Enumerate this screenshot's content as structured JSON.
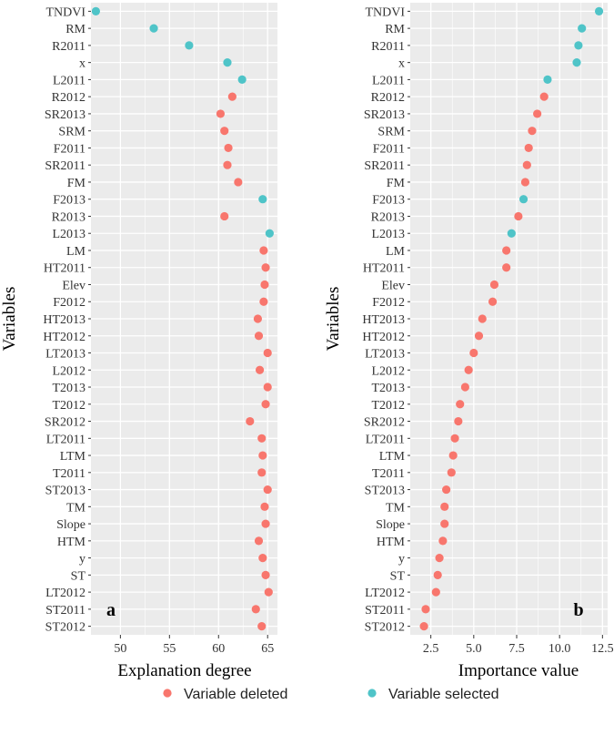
{
  "chart_data": [
    {
      "type": "scatter",
      "panel_label": "a",
      "xlabel": "Explanation degree",
      "ylabel": "Variables",
      "xlim": [
        47,
        66
      ],
      "xticks": [
        50,
        55,
        60,
        65
      ],
      "xtick_labels": [
        "50",
        "55",
        "60",
        "65"
      ],
      "grid": true,
      "points": [
        {
          "variable": "TNDVI",
          "value": 47.5,
          "status": "selected"
        },
        {
          "variable": "RM",
          "value": 53.4,
          "status": "selected"
        },
        {
          "variable": "R2011",
          "value": 57.0,
          "status": "selected"
        },
        {
          "variable": "x",
          "value": 60.9,
          "status": "selected"
        },
        {
          "variable": "L2011",
          "value": 62.4,
          "status": "selected"
        },
        {
          "variable": "R2012",
          "value": 61.4,
          "status": "deleted"
        },
        {
          "variable": "SR2013",
          "value": 60.2,
          "status": "deleted"
        },
        {
          "variable": "SRM",
          "value": 60.6,
          "status": "deleted"
        },
        {
          "variable": "F2011",
          "value": 61.0,
          "status": "deleted"
        },
        {
          "variable": "SR2011",
          "value": 60.9,
          "status": "deleted"
        },
        {
          "variable": "FM",
          "value": 62.0,
          "status": "deleted"
        },
        {
          "variable": "F2013",
          "value": 64.5,
          "status": "selected"
        },
        {
          "variable": "R2013",
          "value": 60.6,
          "status": "deleted"
        },
        {
          "variable": "L2013",
          "value": 65.2,
          "status": "selected"
        },
        {
          "variable": "LM",
          "value": 64.6,
          "status": "deleted"
        },
        {
          "variable": "HT2011",
          "value": 64.8,
          "status": "deleted"
        },
        {
          "variable": "Elev",
          "value": 64.7,
          "status": "deleted"
        },
        {
          "variable": "F2012",
          "value": 64.6,
          "status": "deleted"
        },
        {
          "variable": "HT2013",
          "value": 64.0,
          "status": "deleted"
        },
        {
          "variable": "HT2012",
          "value": 64.1,
          "status": "deleted"
        },
        {
          "variable": "LT2013",
          "value": 65.0,
          "status": "deleted"
        },
        {
          "variable": "L2012",
          "value": 64.2,
          "status": "deleted"
        },
        {
          "variable": "T2013",
          "value": 65.0,
          "status": "deleted"
        },
        {
          "variable": "T2012",
          "value": 64.8,
          "status": "deleted"
        },
        {
          "variable": "SR2012",
          "value": 63.2,
          "status": "deleted"
        },
        {
          "variable": "LT2011",
          "value": 64.4,
          "status": "deleted"
        },
        {
          "variable": "LTM",
          "value": 64.5,
          "status": "deleted"
        },
        {
          "variable": "T2011",
          "value": 64.4,
          "status": "deleted"
        },
        {
          "variable": "ST2013",
          "value": 65.0,
          "status": "deleted"
        },
        {
          "variable": "TM",
          "value": 64.7,
          "status": "deleted"
        },
        {
          "variable": "Slope",
          "value": 64.8,
          "status": "deleted"
        },
        {
          "variable": "HTM",
          "value": 64.1,
          "status": "deleted"
        },
        {
          "variable": "y",
          "value": 64.5,
          "status": "deleted"
        },
        {
          "variable": "ST",
          "value": 64.8,
          "status": "deleted"
        },
        {
          "variable": "LT2012",
          "value": 65.1,
          "status": "deleted"
        },
        {
          "variable": "ST2011",
          "value": 63.8,
          "status": "deleted"
        },
        {
          "variable": "ST2012",
          "value": 64.4,
          "status": "deleted"
        }
      ]
    },
    {
      "type": "scatter",
      "panel_label": "b",
      "xlabel": "Importance value",
      "ylabel": "Variables",
      "xlim": [
        1.3,
        12.8
      ],
      "xticks": [
        2.5,
        5.0,
        7.5,
        10.0,
        12.5
      ],
      "xtick_labels": [
        "2.5",
        "5.0",
        "7.5",
        "10.0",
        "12.5"
      ],
      "grid": true,
      "points": [
        {
          "variable": "TNDVI",
          "value": 12.3,
          "status": "selected"
        },
        {
          "variable": "RM",
          "value": 11.3,
          "status": "selected"
        },
        {
          "variable": "R2011",
          "value": 11.1,
          "status": "selected"
        },
        {
          "variable": "x",
          "value": 11.0,
          "status": "selected"
        },
        {
          "variable": "L2011",
          "value": 9.3,
          "status": "selected"
        },
        {
          "variable": "R2012",
          "value": 9.1,
          "status": "deleted"
        },
        {
          "variable": "SR2013",
          "value": 8.7,
          "status": "deleted"
        },
        {
          "variable": "SRM",
          "value": 8.4,
          "status": "deleted"
        },
        {
          "variable": "F2011",
          "value": 8.2,
          "status": "deleted"
        },
        {
          "variable": "SR2011",
          "value": 8.1,
          "status": "deleted"
        },
        {
          "variable": "FM",
          "value": 8.0,
          "status": "deleted"
        },
        {
          "variable": "F2013",
          "value": 7.9,
          "status": "selected"
        },
        {
          "variable": "R2013",
          "value": 7.6,
          "status": "deleted"
        },
        {
          "variable": "L2013",
          "value": 7.2,
          "status": "selected"
        },
        {
          "variable": "LM",
          "value": 6.9,
          "status": "deleted"
        },
        {
          "variable": "HT2011",
          "value": 6.9,
          "status": "deleted"
        },
        {
          "variable": "Elev",
          "value": 6.2,
          "status": "deleted"
        },
        {
          "variable": "F2012",
          "value": 6.1,
          "status": "deleted"
        },
        {
          "variable": "HT2013",
          "value": 5.5,
          "status": "deleted"
        },
        {
          "variable": "HT2012",
          "value": 5.3,
          "status": "deleted"
        },
        {
          "variable": "LT2013",
          "value": 5.0,
          "status": "deleted"
        },
        {
          "variable": "L2012",
          "value": 4.7,
          "status": "deleted"
        },
        {
          "variable": "T2013",
          "value": 4.5,
          "status": "deleted"
        },
        {
          "variable": "T2012",
          "value": 4.2,
          "status": "deleted"
        },
        {
          "variable": "SR2012",
          "value": 4.1,
          "status": "deleted"
        },
        {
          "variable": "LT2011",
          "value": 3.9,
          "status": "deleted"
        },
        {
          "variable": "LTM",
          "value": 3.8,
          "status": "deleted"
        },
        {
          "variable": "T2011",
          "value": 3.7,
          "status": "deleted"
        },
        {
          "variable": "ST2013",
          "value": 3.4,
          "status": "deleted"
        },
        {
          "variable": "TM",
          "value": 3.3,
          "status": "deleted"
        },
        {
          "variable": "Slope",
          "value": 3.3,
          "status": "deleted"
        },
        {
          "variable": "HTM",
          "value": 3.2,
          "status": "deleted"
        },
        {
          "variable": "y",
          "value": 3.0,
          "status": "deleted"
        },
        {
          "variable": "ST",
          "value": 2.9,
          "status": "deleted"
        },
        {
          "variable": "LT2012",
          "value": 2.8,
          "status": "deleted"
        },
        {
          "variable": "ST2011",
          "value": 2.2,
          "status": "deleted"
        },
        {
          "variable": "ST2012",
          "value": 2.1,
          "status": "deleted"
        }
      ]
    }
  ],
  "legend": {
    "placement": "bottom",
    "items": [
      {
        "key": "deleted",
        "label": "Variable deleted",
        "color": "#F8766D"
      },
      {
        "key": "selected",
        "label": "Variable selected",
        "color": "#4FC4C8"
      }
    ]
  },
  "style": {
    "panel_background": "#EBEBEB",
    "grid_color": "#FFFFFF"
  }
}
